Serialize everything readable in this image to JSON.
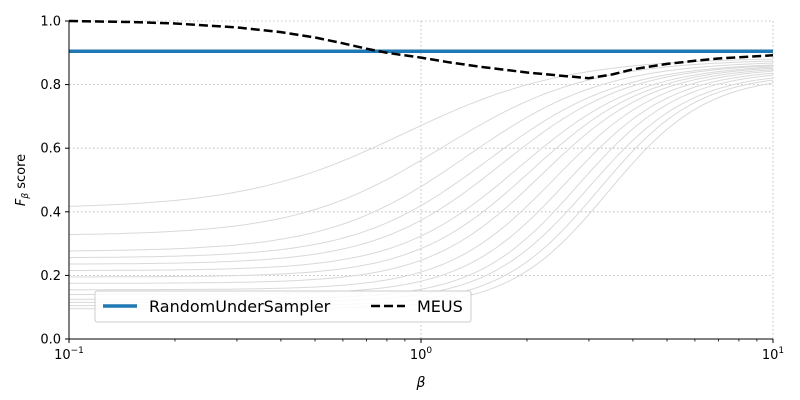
{
  "chart_data": {
    "type": "line",
    "title": "",
    "xlabel": "β",
    "ylabel_main": "F",
    "ylabel_sub": "β",
    "ylabel_rest": " score",
    "xscale": "log",
    "xlim": [
      0.1,
      10
    ],
    "ylim": [
      0,
      1
    ],
    "grid": true,
    "legend_position": "lower-left",
    "x_ticks": [
      {
        "value": 0.1,
        "base": "10",
        "exp": "−1"
      },
      {
        "value": 1,
        "base": "10",
        "exp": "0"
      },
      {
        "value": 10,
        "base": "10",
        "exp": "1"
      }
    ],
    "y_ticks": [
      {
        "value": 0.0,
        "label": "0.0"
      },
      {
        "value": 0.2,
        "label": "0.2"
      },
      {
        "value": 0.4,
        "label": "0.4"
      },
      {
        "value": 0.6,
        "label": "0.6"
      },
      {
        "value": 0.8,
        "label": "0.8"
      },
      {
        "value": 1.0,
        "label": "1.0"
      }
    ],
    "colors": {
      "random_under_sampler": "#1f77b4",
      "meus": "#000000",
      "background_curves": "#d9d9d9",
      "grid": "#b0b0b0"
    },
    "series": [
      {
        "name": "RandomUnderSampler",
        "style": "solid",
        "x": [
          0.1,
          1,
          10
        ],
        "y": [
          0.905,
          0.905,
          0.905
        ]
      },
      {
        "name": "MEUS",
        "style": "dashed",
        "x": [
          0.1,
          0.15,
          0.2,
          0.3,
          0.4,
          0.5,
          0.6,
          0.7,
          0.8,
          1.0,
          1.2,
          1.5,
          2.0,
          2.5,
          3.0,
          3.5,
          4.0,
          5.0,
          6.0,
          7.0,
          8.0,
          10.0
        ],
        "y": [
          1.0,
          0.997,
          0.992,
          0.98,
          0.965,
          0.948,
          0.93,
          0.913,
          0.9,
          0.885,
          0.87,
          0.855,
          0.838,
          0.828,
          0.82,
          0.832,
          0.848,
          0.865,
          0.875,
          0.882,
          0.886,
          0.892
        ]
      }
    ],
    "background_curves": [
      {
        "low": 0.41,
        "high": 0.885,
        "mid": 0.9,
        "k": 1.9
      },
      {
        "low": 0.325,
        "high": 0.88,
        "mid": 1.15,
        "k": 2.1
      },
      {
        "low": 0.275,
        "high": 0.875,
        "mid": 1.35,
        "k": 2.2
      },
      {
        "low": 0.255,
        "high": 0.87,
        "mid": 1.55,
        "k": 2.3
      },
      {
        "low": 0.235,
        "high": 0.868,
        "mid": 1.7,
        "k": 2.4
      },
      {
        "low": 0.215,
        "high": 0.865,
        "mid": 1.9,
        "k": 2.5
      },
      {
        "low": 0.195,
        "high": 0.862,
        "mid": 2.05,
        "k": 2.6
      },
      {
        "low": 0.175,
        "high": 0.858,
        "mid": 2.2,
        "k": 2.7
      },
      {
        "low": 0.155,
        "high": 0.855,
        "mid": 2.4,
        "k": 2.8
      },
      {
        "low": 0.14,
        "high": 0.85,
        "mid": 2.6,
        "k": 2.9
      },
      {
        "low": 0.125,
        "high": 0.845,
        "mid": 2.8,
        "k": 3.0
      },
      {
        "low": 0.115,
        "high": 0.84,
        "mid": 3.0,
        "k": 3.0
      },
      {
        "low": 0.105,
        "high": 0.835,
        "mid": 3.2,
        "k": 3.1
      },
      {
        "low": 0.095,
        "high": 0.83,
        "mid": 3.4,
        "k": 3.1
      }
    ]
  }
}
